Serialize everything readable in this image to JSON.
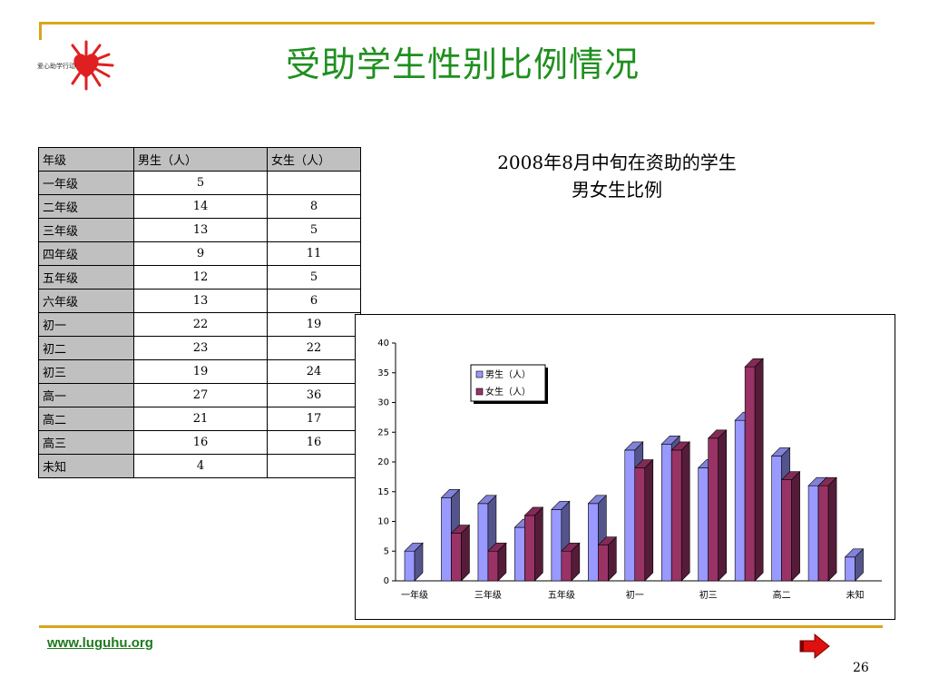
{
  "header": {
    "title": "受助学生性别比例情况",
    "logo_text": "爱心助学行动"
  },
  "table": {
    "headers": [
      "年级",
      "男生（人）",
      "女生（人）"
    ],
    "rows": [
      [
        "一年级",
        "5",
        ""
      ],
      [
        "二年级",
        "14",
        "8"
      ],
      [
        "三年级",
        "13",
        "5"
      ],
      [
        "四年级",
        "9",
        "11"
      ],
      [
        "五年级",
        "12",
        "5"
      ],
      [
        "六年级",
        "13",
        "6"
      ],
      [
        "初一",
        "22",
        "19"
      ],
      [
        "初二",
        "23",
        "22"
      ],
      [
        "初三",
        "19",
        "24"
      ],
      [
        "高一",
        "27",
        "36"
      ],
      [
        "高二",
        "21",
        "17"
      ],
      [
        "高三",
        "16",
        "16"
      ],
      [
        "未知",
        "4",
        ""
      ]
    ]
  },
  "chart_title": {
    "line1": "2008年8月中旬在资助的学生",
    "line2": "男女生比例"
  },
  "chart_data": {
    "type": "bar",
    "style": "3d-clustered-column",
    "categories": [
      "一年级",
      "二年级",
      "三年级",
      "四年级",
      "五年级",
      "六年级",
      "初一",
      "初二",
      "初三",
      "高一",
      "高二",
      "高三",
      "未知"
    ],
    "x_tick_labels_shown": [
      "一年级",
      "三年级",
      "五年级",
      "初一",
      "初三",
      "高二",
      "未知"
    ],
    "series": [
      {
        "name": "男生（人）",
        "values": [
          5,
          14,
          13,
          9,
          12,
          13,
          22,
          23,
          19,
          27,
          21,
          16,
          4
        ],
        "color": "#9999ff"
      },
      {
        "name": "女生（人）",
        "values": [
          null,
          8,
          5,
          11,
          5,
          6,
          19,
          22,
          24,
          36,
          17,
          16,
          null
        ],
        "color": "#993366"
      }
    ],
    "ylim": [
      0,
      40
    ],
    "yticks": [
      0,
      5,
      10,
      15,
      20,
      25,
      30,
      35,
      40
    ],
    "grid": false,
    "legend": "top-left"
  },
  "footer": {
    "url": "www.luguhu.org",
    "page_number": "26"
  },
  "colors": {
    "title": "#1f8f1f",
    "rule": "#d9a51a",
    "series_male": "#9999ff",
    "series_female": "#993366"
  },
  "icons": {
    "logo": "sun-heart-logo",
    "nav": "next-arrow-icon"
  }
}
